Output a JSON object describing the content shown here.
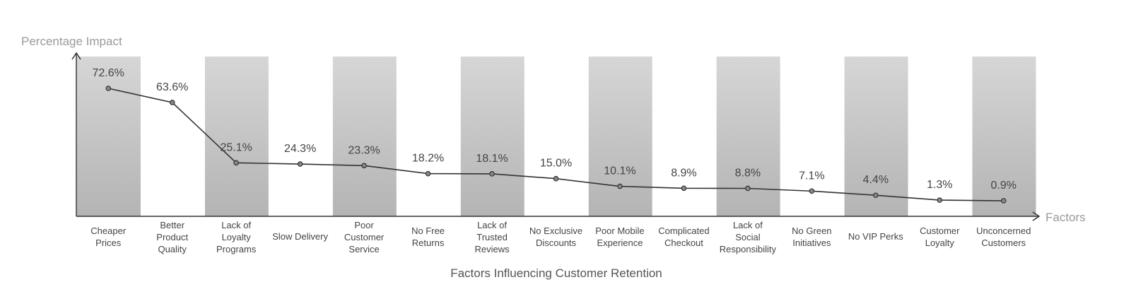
{
  "chart_data": {
    "type": "line",
    "title": "",
    "xlabel": "Factors Influencing Customer Retention",
    "ylabel": "Percentage Impact",
    "x_axis_end_label": "Factors",
    "categories": [
      [
        "Cheaper",
        "Prices"
      ],
      [
        "Better",
        "Product",
        "Quality"
      ],
      [
        "Lack of",
        "Loyalty",
        "Programs"
      ],
      [
        "Slow Delivery"
      ],
      [
        "Poor",
        "Customer",
        "Service"
      ],
      [
        "No Free",
        "Returns"
      ],
      [
        "Lack of",
        "Trusted",
        "Reviews"
      ],
      [
        "No Exclusive",
        "Discounts"
      ],
      [
        "Poor Mobile",
        "Experience"
      ],
      [
        "Complicated",
        "Checkout"
      ],
      [
        "Lack of",
        "Social",
        "Responsibility"
      ],
      [
        "No Green",
        "Initiatives"
      ],
      [
        "No VIP Perks"
      ],
      [
        "Customer",
        "Loyalty"
      ],
      [
        "Unconcerned",
        "Customers"
      ]
    ],
    "values": [
      72.6,
      63.6,
      25.1,
      24.3,
      23.3,
      18.2,
      18.1,
      15.0,
      10.1,
      8.9,
      8.8,
      7.1,
      4.4,
      1.3,
      0.9
    ],
    "value_labels": [
      "72.6%",
      "63.6%",
      "25.1%",
      "24.3%",
      "23.3%",
      "18.2%",
      "18.1%",
      "15.0%",
      "10.1%",
      "8.9%",
      "8.8%",
      "7.1%",
      "4.4%",
      "1.3%",
      "0.9%"
    ],
    "ylim": [
      0,
      100
    ],
    "grid": false,
    "legend": "none",
    "colors": {
      "band_top": "#d6d6d6",
      "band_bottom": "#b4b4b4",
      "line": "#333333",
      "marker_fill": "#888888",
      "axis": "#333333"
    }
  }
}
